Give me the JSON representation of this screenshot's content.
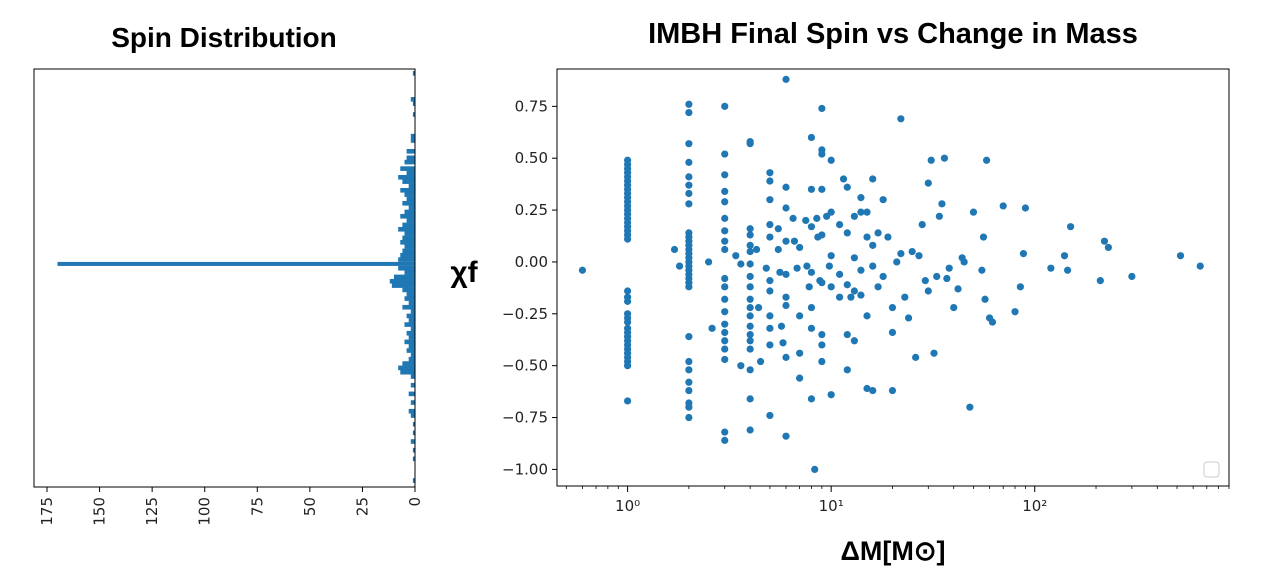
{
  "colors": {
    "series": "#1f77b4",
    "axis": "#000000",
    "text": "#222222"
  },
  "titles": {
    "left": "Spin Distribution",
    "right": "IMBH Final Spin vs Change in Mass"
  },
  "chart_data": [
    {
      "type": "bar",
      "orientation": "horizontal",
      "title": "Spin Distribution",
      "xlabel": "",
      "ylabel": "",
      "xlim": [
        0,
        175
      ],
      "x_inverted": true,
      "ylim": [
        -1.03,
        0.9
      ],
      "x_tick_labels": [
        "175",
        "150",
        "125",
        "100",
        "75",
        "50",
        "25",
        "0"
      ],
      "x_tick_values": [
        175,
        150,
        125,
        100,
        75,
        50,
        25,
        0
      ],
      "grid": false,
      "bins": [
        {
          "y": 0.88,
          "count": 1
        },
        {
          "y": 0.76,
          "count": 2
        },
        {
          "y": 0.74,
          "count": 1
        },
        {
          "y": 0.69,
          "count": 1
        },
        {
          "y": 0.59,
          "count": 2
        },
        {
          "y": 0.57,
          "count": 2
        },
        {
          "y": 0.52,
          "count": 4
        },
        {
          "y": 0.49,
          "count": 4
        },
        {
          "y": 0.47,
          "count": 5
        },
        {
          "y": 0.44,
          "count": 7
        },
        {
          "y": 0.42,
          "count": 4
        },
        {
          "y": 0.4,
          "count": 8
        },
        {
          "y": 0.38,
          "count": 6
        },
        {
          "y": 0.36,
          "count": 3
        },
        {
          "y": 0.34,
          "count": 7
        },
        {
          "y": 0.32,
          "count": 5
        },
        {
          "y": 0.3,
          "count": 4
        },
        {
          "y": 0.28,
          "count": 6
        },
        {
          "y": 0.26,
          "count": 3
        },
        {
          "y": 0.24,
          "count": 5
        },
        {
          "y": 0.22,
          "count": 7
        },
        {
          "y": 0.2,
          "count": 4
        },
        {
          "y": 0.18,
          "count": 6
        },
        {
          "y": 0.16,
          "count": 8
        },
        {
          "y": 0.14,
          "count": 5
        },
        {
          "y": 0.12,
          "count": 6
        },
        {
          "y": 0.1,
          "count": 7
        },
        {
          "y": 0.08,
          "count": 5
        },
        {
          "y": 0.06,
          "count": 6
        },
        {
          "y": 0.04,
          "count": 7
        },
        {
          "y": 0.02,
          "count": 8
        },
        {
          "y": 0.0,
          "count": 170
        },
        {
          "y": -0.02,
          "count": 8
        },
        {
          "y": -0.04,
          "count": 5
        },
        {
          "y": -0.06,
          "count": 10
        },
        {
          "y": -0.08,
          "count": 12
        },
        {
          "y": -0.1,
          "count": 11
        },
        {
          "y": -0.12,
          "count": 6
        },
        {
          "y": -0.14,
          "count": 4
        },
        {
          "y": -0.16,
          "count": 5
        },
        {
          "y": -0.18,
          "count": 3
        },
        {
          "y": -0.2,
          "count": 6
        },
        {
          "y": -0.22,
          "count": 2
        },
        {
          "y": -0.24,
          "count": 4
        },
        {
          "y": -0.26,
          "count": 3
        },
        {
          "y": -0.28,
          "count": 5
        },
        {
          "y": -0.3,
          "count": 2
        },
        {
          "y": -0.32,
          "count": 4
        },
        {
          "y": -0.34,
          "count": 3
        },
        {
          "y": -0.36,
          "count": 5
        },
        {
          "y": -0.38,
          "count": 3
        },
        {
          "y": -0.4,
          "count": 4
        },
        {
          "y": -0.42,
          "count": 2
        },
        {
          "y": -0.44,
          "count": 3
        },
        {
          "y": -0.46,
          "count": 6
        },
        {
          "y": -0.48,
          "count": 8
        },
        {
          "y": -0.5,
          "count": 7
        },
        {
          "y": -0.52,
          "count": 2
        },
        {
          "y": -0.56,
          "count": 2
        },
        {
          "y": -0.6,
          "count": 3
        },
        {
          "y": -0.64,
          "count": 2
        },
        {
          "y": -0.68,
          "count": 3
        },
        {
          "y": -0.7,
          "count": 2
        },
        {
          "y": -0.74,
          "count": 1
        },
        {
          "y": -0.78,
          "count": 1
        },
        {
          "y": -0.82,
          "count": 2
        },
        {
          "y": -0.86,
          "count": 1
        },
        {
          "y": -0.9,
          "count": 1
        },
        {
          "y": -1.0,
          "count": 1
        }
      ]
    },
    {
      "type": "scatter",
      "title": "IMBH Final Spin vs Change in Mass",
      "xlabel": "ΔM[M⊙]",
      "ylabel": "χf",
      "x_scale": "log",
      "xlim": [
        0.45,
        900
      ],
      "ylim": [
        -1.08,
        0.93
      ],
      "x_tick_labels": [
        "10⁰",
        "10¹",
        "10²"
      ],
      "x_tick_values": [
        1,
        10,
        100
      ],
      "y_tick_labels": [
        "0.75",
        "0.50",
        "0.25",
        "0.00",
        "−0.25",
        "−0.50",
        "−0.75",
        "−1.00"
      ],
      "y_tick_values": [
        0.75,
        0.5,
        0.25,
        0,
        -0.25,
        -0.5,
        -0.75,
        -1.0
      ],
      "grid": false,
      "legend": "lower right",
      "points": [
        [
          0.6,
          -0.04
        ],
        [
          1,
          0.49
        ],
        [
          1,
          0.47
        ],
        [
          1,
          0.45
        ],
        [
          1,
          0.43
        ],
        [
          1,
          0.41
        ],
        [
          1,
          0.39
        ],
        [
          1,
          0.37
        ],
        [
          1,
          0.35
        ],
        [
          1,
          0.33
        ],
        [
          1,
          0.31
        ],
        [
          1,
          0.29
        ],
        [
          1,
          0.27
        ],
        [
          1,
          0.25
        ],
        [
          1,
          0.23
        ],
        [
          1,
          0.21
        ],
        [
          1,
          0.19
        ],
        [
          1,
          0.17
        ],
        [
          1,
          0.15
        ],
        [
          1,
          0.13
        ],
        [
          1,
          0.11
        ],
        [
          1,
          -0.14
        ],
        [
          1,
          -0.17
        ],
        [
          1,
          -0.19
        ],
        [
          1,
          -0.25
        ],
        [
          1,
          -0.27
        ],
        [
          1,
          -0.29
        ],
        [
          1,
          -0.32
        ],
        [
          1,
          -0.34
        ],
        [
          1,
          -0.36
        ],
        [
          1,
          -0.38
        ],
        [
          1,
          -0.4
        ],
        [
          1,
          -0.42
        ],
        [
          1,
          -0.44
        ],
        [
          1,
          -0.46
        ],
        [
          1,
          -0.48
        ],
        [
          1,
          -0.5
        ],
        [
          1,
          -0.67
        ],
        [
          2,
          0.76
        ],
        [
          2,
          0.72
        ],
        [
          2,
          0.57
        ],
        [
          2,
          0.48
        ],
        [
          2,
          0.41
        ],
        [
          2,
          0.37
        ],
        [
          2,
          0.33
        ],
        [
          2,
          0.28
        ],
        [
          2,
          0.14
        ],
        [
          2,
          0.12
        ],
        [
          2,
          0.1
        ],
        [
          2,
          0.08
        ],
        [
          2,
          0.06
        ],
        [
          2,
          0.04
        ],
        [
          2,
          0.02
        ],
        [
          2,
          0.0
        ],
        [
          2,
          -0.02
        ],
        [
          2,
          -0.04
        ],
        [
          2,
          -0.06
        ],
        [
          2,
          -0.08
        ],
        [
          2,
          -0.1
        ],
        [
          2,
          -0.12
        ],
        [
          2,
          -0.36
        ],
        [
          2,
          -0.48
        ],
        [
          2,
          -0.52
        ],
        [
          2,
          -0.58
        ],
        [
          2,
          -0.62
        ],
        [
          2,
          -0.68
        ],
        [
          2,
          -0.7
        ],
        [
          2,
          -0.75
        ],
        [
          3,
          0.75
        ],
        [
          3,
          0.52
        ],
        [
          3,
          0.42
        ],
        [
          3,
          0.34
        ],
        [
          3,
          0.29
        ],
        [
          3,
          0.21
        ],
        [
          3,
          0.15
        ],
        [
          3,
          0.1
        ],
        [
          3,
          0.06
        ],
        [
          3,
          -0.08
        ],
        [
          3,
          -0.12
        ],
        [
          3,
          -0.18
        ],
        [
          3,
          -0.24
        ],
        [
          3,
          -0.3
        ],
        [
          3,
          -0.34
        ],
        [
          3,
          -0.38
        ],
        [
          3,
          -0.42
        ],
        [
          3,
          -0.47
        ],
        [
          3,
          -0.82
        ],
        [
          3,
          -0.86
        ],
        [
          1.7,
          0.06
        ],
        [
          1.8,
          -0.02
        ],
        [
          2.5,
          0.0
        ],
        [
          2.6,
          -0.32
        ],
        [
          3.4,
          0.03
        ],
        [
          3.6,
          -0.01
        ],
        [
          3.6,
          -0.5
        ],
        [
          4,
          0.58
        ],
        [
          4,
          0.57
        ],
        [
          4,
          0.16
        ],
        [
          4,
          0.13
        ],
        [
          4,
          0.08
        ],
        [
          4,
          0.05
        ],
        [
          4,
          -0.01
        ],
        [
          4,
          -0.07
        ],
        [
          4,
          -0.12
        ],
        [
          4,
          -0.18
        ],
        [
          4,
          -0.22
        ],
        [
          4,
          -0.26
        ],
        [
          4,
          -0.31
        ],
        [
          4,
          -0.35
        ],
        [
          4,
          -0.38
        ],
        [
          4,
          -0.42
        ],
        [
          4,
          -0.52
        ],
        [
          4,
          -0.66
        ],
        [
          4,
          -0.81
        ],
        [
          4.3,
          0.06
        ],
        [
          4.4,
          -0.22
        ],
        [
          4.5,
          -0.48
        ],
        [
          4.8,
          -0.03
        ],
        [
          5,
          0.43
        ],
        [
          5,
          0.39
        ],
        [
          5,
          0.3
        ],
        [
          5,
          0.18
        ],
        [
          5,
          0.12
        ],
        [
          5,
          -0.09
        ],
        [
          5,
          -0.14
        ],
        [
          5,
          -0.26
        ],
        [
          5,
          -0.32
        ],
        [
          5,
          -0.4
        ],
        [
          5,
          -0.74
        ],
        [
          5.5,
          0.16
        ],
        [
          5.5,
          0.06
        ],
        [
          5.6,
          -0.05
        ],
        [
          5.7,
          -0.31
        ],
        [
          5.8,
          -0.39
        ],
        [
          6,
          0.88
        ],
        [
          6,
          0.36
        ],
        [
          6,
          0.26
        ],
        [
          6,
          0.1
        ],
        [
          6,
          -0.06
        ],
        [
          6,
          -0.17
        ],
        [
          6,
          -0.21
        ],
        [
          6,
          -0.46
        ],
        [
          6,
          -0.84
        ],
        [
          6.5,
          0.21
        ],
        [
          6.6,
          0.1
        ],
        [
          6.8,
          -0.03
        ],
        [
          7,
          0.07
        ],
        [
          7,
          -0.26
        ],
        [
          7,
          -0.44
        ],
        [
          7,
          -0.56
        ],
        [
          7.5,
          0.2
        ],
        [
          7.6,
          -0.02
        ],
        [
          7.8,
          -0.12
        ],
        [
          8,
          0.6
        ],
        [
          8,
          0.35
        ],
        [
          8,
          0.17
        ],
        [
          8,
          -0.05
        ],
        [
          8,
          -0.22
        ],
        [
          8,
          -0.32
        ],
        [
          8,
          -0.66
        ],
        [
          8.3,
          -1.0
        ],
        [
          8.5,
          0.21
        ],
        [
          8.6,
          0.12
        ],
        [
          8.8,
          -0.09
        ],
        [
          9,
          0.74
        ],
        [
          9,
          0.54
        ],
        [
          9,
          0.52
        ],
        [
          9,
          0.35
        ],
        [
          9,
          0.13
        ],
        [
          9,
          -0.1
        ],
        [
          9,
          -0.35
        ],
        [
          9,
          -0.4
        ],
        [
          9,
          -0.48
        ],
        [
          9.5,
          0.22
        ],
        [
          9.8,
          -0.02
        ],
        [
          10,
          0.49
        ],
        [
          10,
          0.24
        ],
        [
          10,
          0.03
        ],
        [
          10,
          -0.12
        ],
        [
          10,
          -0.64
        ],
        [
          11,
          0.18
        ],
        [
          11,
          -0.06
        ],
        [
          11,
          -0.17
        ],
        [
          11.5,
          0.4
        ],
        [
          12,
          0.36
        ],
        [
          12,
          0.14
        ],
        [
          12,
          -0.11
        ],
        [
          12,
          -0.35
        ],
        [
          12,
          -0.52
        ],
        [
          12.5,
          -0.17
        ],
        [
          13,
          0.22
        ],
        [
          13,
          0.02
        ],
        [
          13,
          -0.14
        ],
        [
          13,
          -0.38
        ],
        [
          14,
          0.31
        ],
        [
          14,
          0.24
        ],
        [
          14,
          -0.04
        ],
        [
          14,
          -0.16
        ],
        [
          15,
          0.24
        ],
        [
          15,
          0.12
        ],
        [
          15,
          -0.26
        ],
        [
          15,
          -0.61
        ],
        [
          16,
          0.4
        ],
        [
          16,
          0.08
        ],
        [
          16,
          -0.02
        ],
        [
          16,
          -0.62
        ],
        [
          17,
          0.14
        ],
        [
          17,
          -0.12
        ],
        [
          18,
          0.3
        ],
        [
          18,
          -0.07
        ],
        [
          19,
          0.12
        ],
        [
          20,
          -0.22
        ],
        [
          20,
          -0.34
        ],
        [
          20,
          -0.62
        ],
        [
          21,
          0.0
        ],
        [
          22,
          0.69
        ],
        [
          22,
          0.04
        ],
        [
          23,
          -0.17
        ],
        [
          24,
          -0.27
        ],
        [
          25,
          0.05
        ],
        [
          26,
          -0.46
        ],
        [
          27,
          0.03
        ],
        [
          28,
          0.18
        ],
        [
          29,
          -0.09
        ],
        [
          30,
          0.38
        ],
        [
          30,
          -0.14
        ],
        [
          31,
          0.49
        ],
        [
          32,
          -0.44
        ],
        [
          33,
          -0.07
        ],
        [
          34,
          0.22
        ],
        [
          35,
          0.28
        ],
        [
          36,
          0.5
        ],
        [
          37,
          -0.08
        ],
        [
          38,
          -0.03
        ],
        [
          40,
          -0.22
        ],
        [
          42,
          -0.13
        ],
        [
          44,
          0.02
        ],
        [
          45,
          0.0
        ],
        [
          48,
          -0.7
        ],
        [
          50,
          0.24
        ],
        [
          55,
          -0.04
        ],
        [
          56,
          0.12
        ],
        [
          57,
          -0.18
        ],
        [
          58,
          0.49
        ],
        [
          60,
          -0.27
        ],
        [
          62,
          -0.29
        ],
        [
          70,
          0.27
        ],
        [
          80,
          -0.24
        ],
        [
          85,
          -0.12
        ],
        [
          88,
          0.04
        ],
        [
          90,
          0.26
        ],
        [
          120,
          -0.03
        ],
        [
          140,
          0.03
        ],
        [
          145,
          -0.04
        ],
        [
          150,
          0.17
        ],
        [
          210,
          -0.09
        ],
        [
          220,
          0.1
        ],
        [
          230,
          0.07
        ],
        [
          300,
          -0.07
        ],
        [
          520,
          0.03
        ],
        [
          650,
          -0.02
        ]
      ]
    }
  ]
}
